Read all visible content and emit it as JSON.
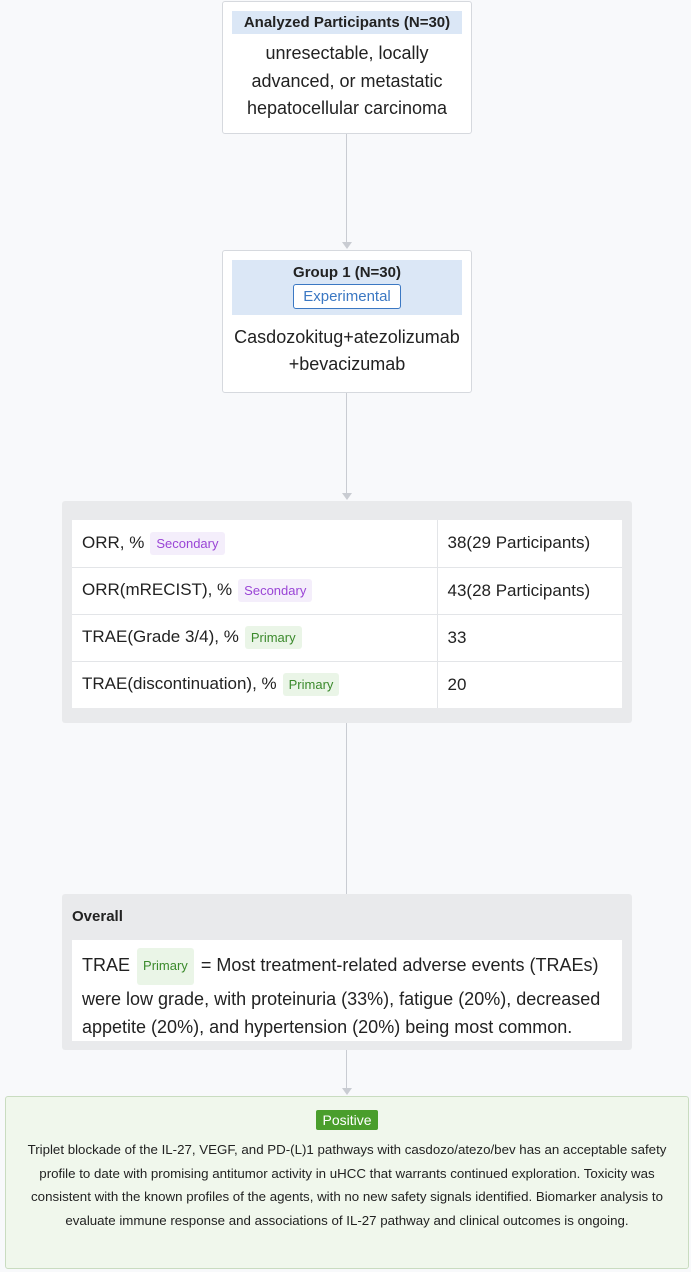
{
  "participants": {
    "header": "Analyzed Participants (N=30)",
    "description": "unresectable, locally advanced, or metastatic hepatocellular carcinoma"
  },
  "group": {
    "title": "Group 1 (N=30)",
    "tag": "Experimental",
    "description": "Casdozokitug+atezolizumab +bevacizumab"
  },
  "outcomes": [
    {
      "label": "ORR, %",
      "badge": "Secondary",
      "value": "38(29 Participants)"
    },
    {
      "label": "ORR(mRECIST), %",
      "badge": "Secondary",
      "value": "43(28 Participants)"
    },
    {
      "label": "TRAE(Grade 3/4), %",
      "badge": "Primary",
      "value": "33"
    },
    {
      "label": "TRAE(discontinuation), %",
      "badge": "Primary",
      "value": "20"
    }
  ],
  "overall": {
    "title": "Overall",
    "term": "TRAE",
    "badge": "Primary",
    "text": "= Most treatment-related adverse events (TRAEs) were low grade, with proteinuria (33%), fatigue (20%), decreased appetite (20%), and hypertension (20%) being most common."
  },
  "conclusion": {
    "badge": "Positive",
    "text": "Triplet blockade of the IL-27, VEGF, and PD-(L)1 pathways with casdozo/atezo/bev has an acceptable safety profile to date with promising antitumor activity in uHCC that warrants continued exploration. Toxicity was consistent with the known profiles of the agents, with no new safety signals identified. Biomarker analysis to evaluate immune response and associations of IL-27 pathway and clinical outcomes is ongoing."
  },
  "colors": {
    "header_bg": "#dbe7f6",
    "experimental": "#3b78c3",
    "secondary": "#9a45d6",
    "primary": "#3b8a2c",
    "positive": "#4a9e2c"
  }
}
